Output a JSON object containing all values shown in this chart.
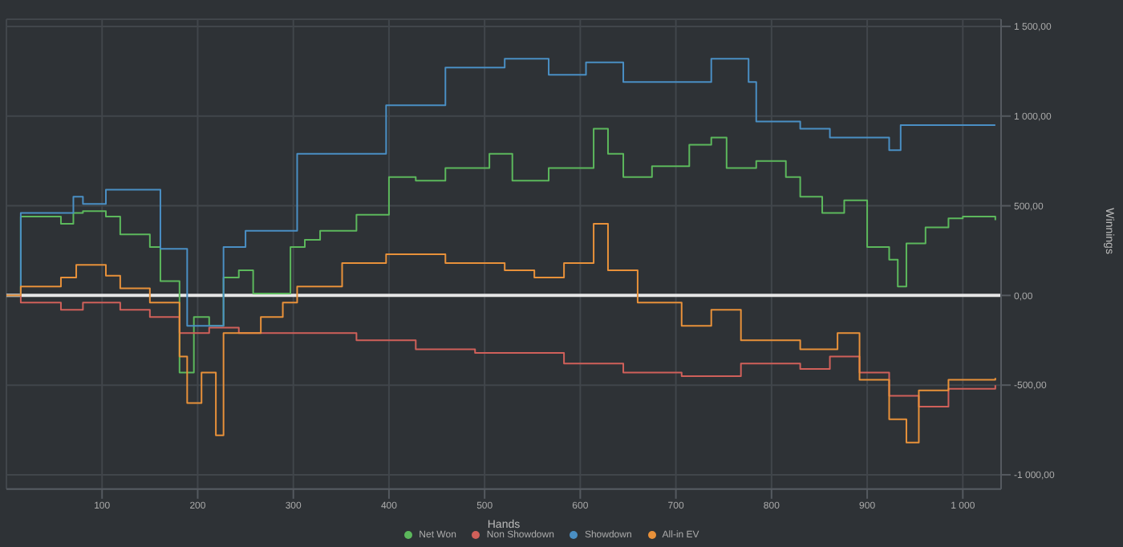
{
  "chart_data": {
    "type": "step",
    "xlabel": "Hands",
    "ylabel": "Winnings",
    "xlim": [
      0,
      1040
    ],
    "ylim": [
      -1080,
      1540
    ],
    "xticks": [
      100,
      200,
      300,
      400,
      500,
      600,
      700,
      800,
      900,
      {
        "value": 1000,
        "label": "1 000"
      }
    ],
    "yticks": [
      {
        "value": -1000,
        "label": "-1 000,00"
      },
      {
        "value": -500,
        "label": "-500,00"
      },
      {
        "value": 0,
        "label": "0,00"
      },
      {
        "value": 500,
        "label": "500,00"
      },
      {
        "value": 1000,
        "label": "1 000,00"
      },
      {
        "value": 1500,
        "label": "1 500,00"
      }
    ],
    "grid": true,
    "legend": "bottom",
    "marker": "none",
    "line_style": "solid",
    "ref_lines": [
      {
        "axis": "y",
        "value": 0,
        "color": "#e6e6e6"
      }
    ],
    "series": [
      {
        "name": "Net Won",
        "color": "#5cb85c",
        "x": [
          0,
          15,
          57,
          70,
          80,
          104,
          119,
          150,
          161,
          181,
          196,
          212,
          227,
          243,
          258,
          297,
          312,
          328,
          366,
          400,
          428,
          459,
          505,
          529,
          567,
          614,
          629,
          645,
          675,
          714,
          737,
          753,
          784,
          815,
          830,
          853,
          876,
          900,
          923,
          932,
          941,
          961,
          985,
          1000,
          1034
        ],
        "values": [
          0,
          440,
          400,
          460,
          470,
          440,
          340,
          270,
          80,
          -430,
          -120,
          -170,
          100,
          140,
          10,
          270,
          310,
          360,
          450,
          660,
          640,
          710,
          790,
          640,
          710,
          930,
          790,
          660,
          720,
          840,
          880,
          710,
          750,
          660,
          550,
          460,
          530,
          270,
          200,
          50,
          290,
          380,
          430,
          440,
          420
        ]
      },
      {
        "name": "Non Showdown",
        "color": "#d0605a",
        "x": [
          0,
          15,
          57,
          80,
          119,
          150,
          181,
          212,
          243,
          304,
          366,
          428,
          490,
          583,
          645,
          706,
          768,
          830,
          861,
          892,
          923,
          954,
          985,
          1034
        ],
        "values": [
          0,
          -40,
          -80,
          -40,
          -80,
          -120,
          -210,
          -180,
          -210,
          -210,
          -250,
          -300,
          -320,
          -380,
          -430,
          -450,
          -380,
          -410,
          -340,
          -430,
          -560,
          -620,
          -520,
          -500
        ]
      },
      {
        "name": "Showdown",
        "color": "#4a8fc4",
        "x": [
          0,
          15,
          70,
          80,
          104,
          161,
          189,
          227,
          250,
          304,
          397,
          459,
          521,
          567,
          606,
          645,
          691,
          737,
          776,
          784,
          830,
          861,
          923,
          935,
          1034
        ],
        "values": [
          0,
          460,
          550,
          510,
          590,
          260,
          -170,
          270,
          360,
          790,
          1060,
          1270,
          1320,
          1230,
          1300,
          1190,
          1190,
          1320,
          1190,
          970,
          930,
          880,
          810,
          950,
          950
        ]
      },
      {
        "name": "All-in EV",
        "color": "#e8913a",
        "x": [
          0,
          15,
          57,
          73,
          104,
          119,
          150,
          181,
          189,
          204,
          219,
          227,
          266,
          289,
          304,
          351,
          397,
          459,
          521,
          552,
          583,
          614,
          629,
          660,
          706,
          737,
          768,
          830,
          869,
          892,
          923,
          941,
          954,
          985,
          1034
        ],
        "values": [
          0,
          50,
          100,
          170,
          110,
          40,
          -40,
          -340,
          -600,
          -430,
          -780,
          -210,
          -120,
          -40,
          50,
          180,
          230,
          180,
          140,
          100,
          180,
          400,
          140,
          -40,
          -170,
          -80,
          -250,
          -300,
          -210,
          -470,
          -690,
          -820,
          -530,
          -470,
          -460
        ]
      }
    ]
  }
}
